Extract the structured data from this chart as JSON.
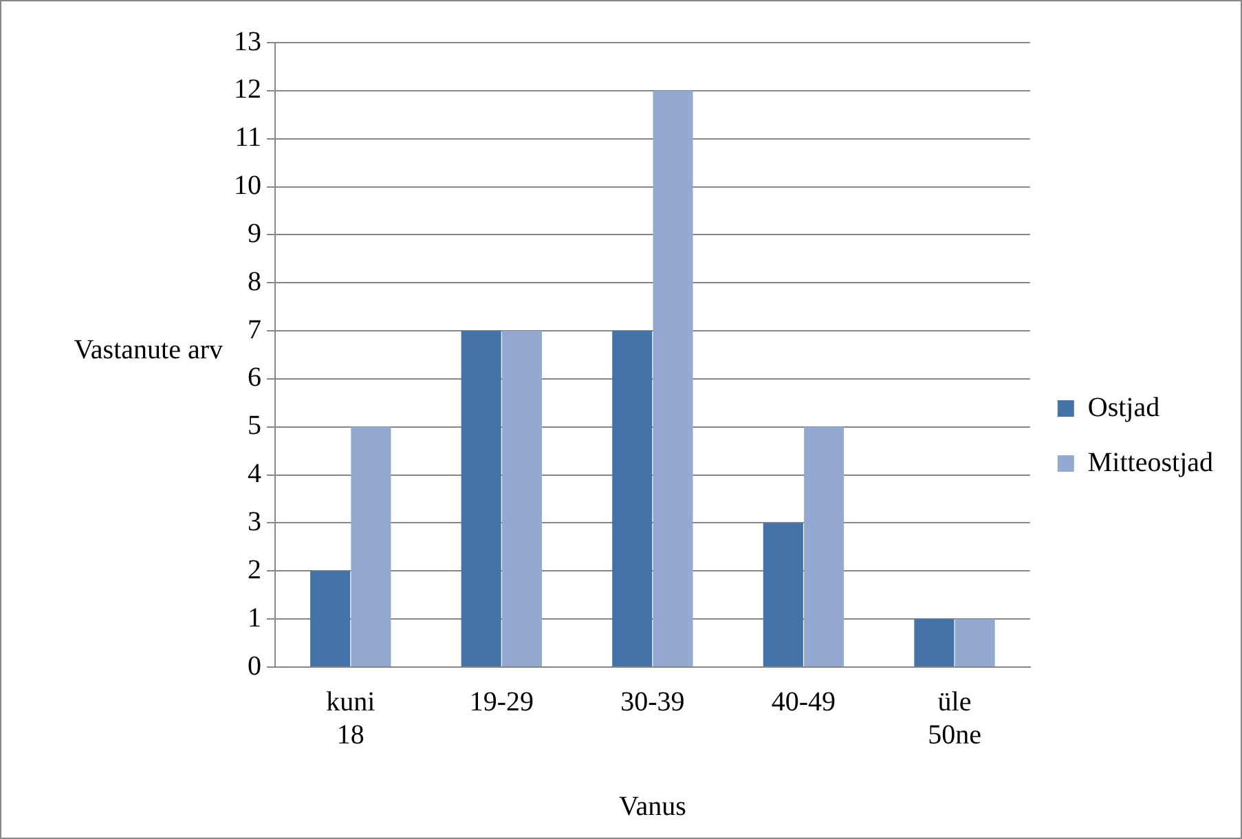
{
  "chart_data": {
    "type": "bar",
    "xlabel": "Vanus",
    "ylabel": "Vastanute arv",
    "categories": [
      "kuni 18",
      "19-29",
      "30-39",
      "40-49",
      "üle 50ne"
    ],
    "series": [
      {
        "name": "Ostjad",
        "color": "#4572a7",
        "values": [
          2,
          7,
          7,
          3,
          1
        ]
      },
      {
        "name": "Mitteostjad",
        "color": "#93a9cf",
        "values": [
          5,
          7,
          12,
          5,
          1
        ]
      }
    ],
    "ylim": [
      0,
      13
    ],
    "yticks": [
      0,
      1,
      2,
      3,
      4,
      5,
      6,
      7,
      8,
      9,
      10,
      11,
      12,
      13
    ],
    "grid": "y",
    "legend": "right"
  }
}
